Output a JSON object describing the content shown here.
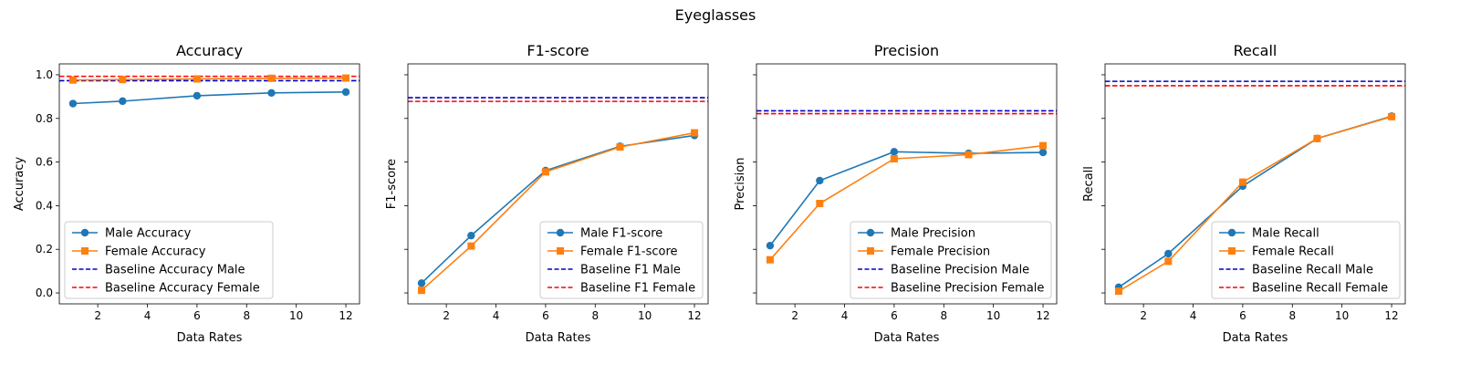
{
  "figure": {
    "suptitle": "Eyeglasses"
  },
  "chart_data": [
    {
      "type": "line",
      "title": "Accuracy",
      "xlabel": "Data Rates",
      "ylabel": "Accuracy",
      "x": [
        1,
        3,
        6,
        9,
        12
      ],
      "xlim": [
        0.45,
        12.55
      ],
      "ylim": [
        -0.05,
        1.05
      ],
      "xticks": [
        2,
        4,
        6,
        8,
        10,
        12
      ],
      "yticks": [
        0.0,
        0.2,
        0.4,
        0.6,
        0.8,
        1.0
      ],
      "ytick_labels": [
        "0.0",
        "0.2",
        "0.4",
        "0.6",
        "0.8",
        "1.0"
      ],
      "legend": "lower-left",
      "series": [
        {
          "name": "Male Accuracy",
          "values": [
            0.868,
            0.879,
            0.904,
            0.917,
            0.921
          ],
          "color": "#1f77b4",
          "marker": "circle",
          "style": "solid"
        },
        {
          "name": "Female Accuracy",
          "values": [
            0.976,
            0.978,
            0.981,
            0.984,
            0.985
          ],
          "color": "#ff7f0e",
          "marker": "square",
          "style": "solid"
        }
      ],
      "baselines": [
        {
          "name": "Baseline Accuracy Male",
          "value": 0.973,
          "color": "#0000cc",
          "style": "dashed"
        },
        {
          "name": "Baseline Accuracy Female",
          "value": 0.993,
          "color": "#ff0000",
          "style": "dashed"
        }
      ]
    },
    {
      "type": "line",
      "title": "F1-score",
      "xlabel": "Data Rates",
      "ylabel": "F1-score",
      "x": [
        1,
        3,
        6,
        9,
        12
      ],
      "xlim": [
        0.45,
        12.55
      ],
      "ylim": [
        -0.05,
        1.05
      ],
      "xticks": [
        2,
        4,
        6,
        8,
        10,
        12
      ],
      "yticks": [
        0.0,
        0.2,
        0.4,
        0.6,
        0.8,
        1.0
      ],
      "ytick_labels": [
        "",
        "",
        "",
        "",
        "",
        ""
      ],
      "legend": "lower-right",
      "series": [
        {
          "name": "Male F1-score",
          "values": [
            0.045,
            0.263,
            0.561,
            0.672,
            0.722
          ],
          "color": "#1f77b4",
          "marker": "circle",
          "style": "solid"
        },
        {
          "name": "Female F1-score",
          "values": [
            0.012,
            0.215,
            0.555,
            0.669,
            0.734
          ],
          "color": "#ff7f0e",
          "marker": "square",
          "style": "solid"
        }
      ],
      "baselines": [
        {
          "name": "Baseline F1 Male",
          "value": 0.895,
          "color": "#0000cc",
          "style": "dashed"
        },
        {
          "name": "Baseline F1 Female",
          "value": 0.878,
          "color": "#ff0000",
          "style": "dashed"
        }
      ]
    },
    {
      "type": "line",
      "title": "Precision",
      "xlabel": "Data Rates",
      "ylabel": "Precision",
      "x": [
        1,
        3,
        6,
        9,
        12
      ],
      "xlim": [
        0.45,
        12.55
      ],
      "ylim": [
        -0.05,
        1.05
      ],
      "xticks": [
        2,
        4,
        6,
        8,
        10,
        12
      ],
      "yticks": [
        0.0,
        0.2,
        0.4,
        0.6,
        0.8,
        1.0
      ],
      "ytick_labels": [
        "",
        "",
        "",
        "",
        "",
        ""
      ],
      "legend": "lower-right",
      "series": [
        {
          "name": "Male Precision",
          "values": [
            0.217,
            0.515,
            0.647,
            0.64,
            0.644
          ],
          "color": "#1f77b4",
          "marker": "circle",
          "style": "solid"
        },
        {
          "name": "Female Precision",
          "values": [
            0.152,
            0.41,
            0.615,
            0.634,
            0.675
          ],
          "color": "#ff7f0e",
          "marker": "square",
          "style": "solid"
        }
      ],
      "baselines": [
        {
          "name": "Baseline Precision Male",
          "value": 0.835,
          "color": "#0000cc",
          "style": "dashed"
        },
        {
          "name": "Baseline Precision Female",
          "value": 0.822,
          "color": "#ff0000",
          "style": "dashed"
        }
      ]
    },
    {
      "type": "line",
      "title": "Recall",
      "xlabel": "Data Rates",
      "ylabel": "Recall",
      "x": [
        1,
        3,
        6,
        9,
        12
      ],
      "xlim": [
        0.45,
        12.55
      ],
      "ylim": [
        -0.05,
        1.05
      ],
      "xticks": [
        2,
        4,
        6,
        8,
        10,
        12
      ],
      "yticks": [
        0.0,
        0.2,
        0.4,
        0.6,
        0.8,
        1.0
      ],
      "ytick_labels": [
        "",
        "",
        "",
        "",
        "",
        ""
      ],
      "legend": "lower-right",
      "series": [
        {
          "name": "Male Recall",
          "values": [
            0.026,
            0.18,
            0.49,
            0.708,
            0.81
          ],
          "color": "#1f77b4",
          "marker": "circle",
          "style": "solid"
        },
        {
          "name": "Female Recall",
          "values": [
            0.008,
            0.145,
            0.508,
            0.708,
            0.808
          ],
          "color": "#ff7f0e",
          "marker": "square",
          "style": "solid"
        }
      ],
      "baselines": [
        {
          "name": "Baseline Recall Male",
          "value": 0.97,
          "color": "#0000cc",
          "style": "dashed"
        },
        {
          "name": "Baseline Recall Female",
          "value": 0.95,
          "color": "#ff0000",
          "style": "dashed"
        }
      ]
    }
  ]
}
